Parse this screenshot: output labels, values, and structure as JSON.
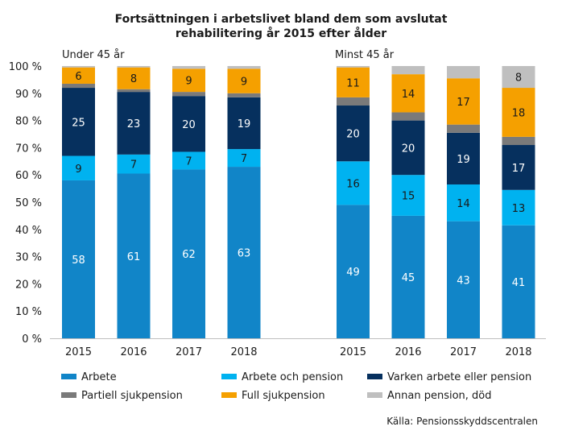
{
  "chart_data": {
    "type": "bar",
    "stacked": true,
    "title_lines": [
      "Fortsättningen i arbetslivet bland dem som avslutat",
      "rehabilitering år 2015 efter ålder"
    ],
    "y_ticks": [
      "0 %",
      "10 %",
      "20 %",
      "30 %",
      "40 %",
      "50 %",
      "60 %",
      "70 %",
      "80 %",
      "90 %",
      "100 %"
    ],
    "ylim": [
      0,
      100
    ],
    "grid": false,
    "legend_position": "bottom",
    "source": "Källa: Pensionsskyddscentralen",
    "series": [
      {
        "name": "Arbete",
        "color": "#1185c8"
      },
      {
        "name": "Arbete och pension",
        "color": "#00b2f0"
      },
      {
        "name": "Varken arbete eller pension",
        "color": "#06305e"
      },
      {
        "name": "Partiell sjukpension",
        "color": "#7a7a7a"
      },
      {
        "name": "Full sjukpension",
        "color": "#f5a000"
      },
      {
        "name": "Annan pension, död",
        "color": "#bfbfbf"
      }
    ],
    "groups": [
      {
        "label": "Under 45 år",
        "categories": [
          "2015",
          "2016",
          "2017",
          "2018"
        ],
        "values": [
          [
            58,
            9,
            25,
            1.5,
            6,
            0.5
          ],
          [
            60.5,
            7,
            23,
            1,
            8,
            0.5
          ],
          [
            62,
            6.5,
            20.5,
            1.5,
            8.5,
            1
          ],
          [
            63,
            6.5,
            19,
            1.5,
            9,
            1
          ]
        ],
        "labels": [
          [
            "58",
            "9",
            "25",
            "",
            "6",
            ""
          ],
          [
            "61",
            "7",
            "23",
            "",
            "8",
            ""
          ],
          [
            "62",
            "7",
            "20",
            "",
            "9",
            ""
          ],
          [
            "63",
            "7",
            "19",
            "",
            "9",
            ""
          ]
        ]
      },
      {
        "label": "Minst 45 år",
        "categories": [
          "2015",
          "2016",
          "2017",
          "2018"
        ],
        "values": [
          [
            49,
            16,
            20.5,
            3,
            11,
            0.5
          ],
          [
            45,
            15,
            20,
            3,
            14,
            3
          ],
          [
            43,
            13.5,
            19,
            3,
            17,
            4.5
          ],
          [
            41.5,
            13,
            16.5,
            3,
            18,
            8
          ]
        ],
        "labels": [
          [
            "49",
            "16",
            "20",
            "",
            "11",
            ""
          ],
          [
            "45",
            "15",
            "20",
            "",
            "14",
            ""
          ],
          [
            "43",
            "14",
            "19",
            "",
            "17",
            ""
          ],
          [
            "41",
            "13",
            "17",
            "",
            "18",
            "8"
          ]
        ]
      }
    ]
  }
}
